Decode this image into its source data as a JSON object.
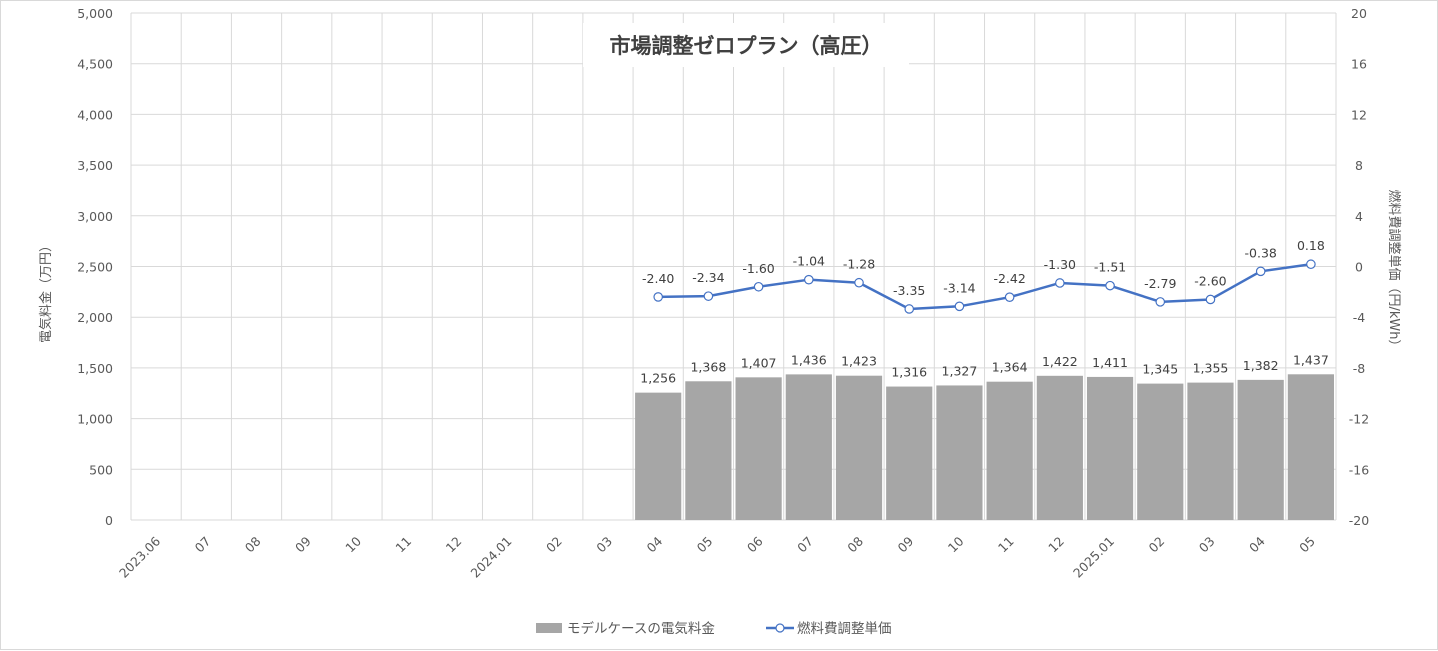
{
  "chart_data": {
    "type": "bar",
    "title": "市場調整ゼロプラン（高圧）",
    "categories": [
      "2023.06",
      "07",
      "08",
      "09",
      "10",
      "11",
      "12",
      "2024.01",
      "02",
      "03",
      "04",
      "05",
      "06",
      "07",
      "08",
      "09",
      "10",
      "11",
      "12",
      "2025.01",
      "02",
      "03",
      "04",
      "05"
    ],
    "series": [
      {
        "name": "モデルケースの電気料金",
        "type": "bar",
        "axis": "left",
        "color": "#a6a6a6",
        "values": [
          null,
          null,
          null,
          null,
          null,
          null,
          null,
          null,
          null,
          null,
          1256,
          1368,
          1407,
          1436,
          1423,
          1316,
          1327,
          1364,
          1422,
          1411,
          1345,
          1355,
          1382,
          1437
        ],
        "labels": [
          "",
          "",
          "",
          "",
          "",
          "",
          "",
          "",
          "",
          "",
          "1,256",
          "1,368",
          "1,407",
          "1,436",
          "1,423",
          "1,316",
          "1,327",
          "1,364",
          "1,422",
          "1,411",
          "1,345",
          "1,355",
          "1,382",
          "1,437"
        ]
      },
      {
        "name": "燃料費調整単価",
        "type": "line",
        "axis": "right",
        "color": "#4472c4",
        "values": [
          null,
          null,
          null,
          null,
          null,
          null,
          null,
          null,
          null,
          null,
          -2.4,
          -2.34,
          -1.6,
          -1.04,
          -1.28,
          -3.35,
          -3.14,
          -2.42,
          -1.3,
          -1.51,
          -2.79,
          -2.6,
          -0.38,
          0.18
        ],
        "labels": [
          "",
          "",
          "",
          "",
          "",
          "",
          "",
          "",
          "",
          "",
          "-2.40",
          "-2.34",
          "-1.60",
          "-1.04",
          "-1.28",
          "-3.35",
          "-3.14",
          "-2.42",
          "-1.30",
          "-1.51",
          "-2.79",
          "-2.60",
          "-0.38",
          "0.18"
        ]
      }
    ],
    "y_left": {
      "label": "電気料金（万円）",
      "min": 0,
      "max": 5000,
      "ticks": [
        0,
        500,
        1000,
        1500,
        2000,
        2500,
        3000,
        3500,
        4000,
        4500,
        5000
      ],
      "tick_labels": [
        "0",
        "500",
        "1,000",
        "1,500",
        "2,000",
        "2,500",
        "3,000",
        "3,500",
        "4,000",
        "4,500",
        "5,000"
      ]
    },
    "y_right": {
      "label": "燃料費調整単価（円/kWh）",
      "min": -20,
      "max": 20,
      "ticks": [
        -20,
        -16,
        -12,
        -8,
        -4,
        0,
        4,
        8,
        12,
        16,
        20
      ],
      "tick_labels": [
        "-20",
        "-16",
        "-12",
        "-8",
        "-4",
        "0",
        "4",
        "8",
        "12",
        "16",
        "20"
      ]
    },
    "grid": true,
    "legend_position": "bottom"
  }
}
